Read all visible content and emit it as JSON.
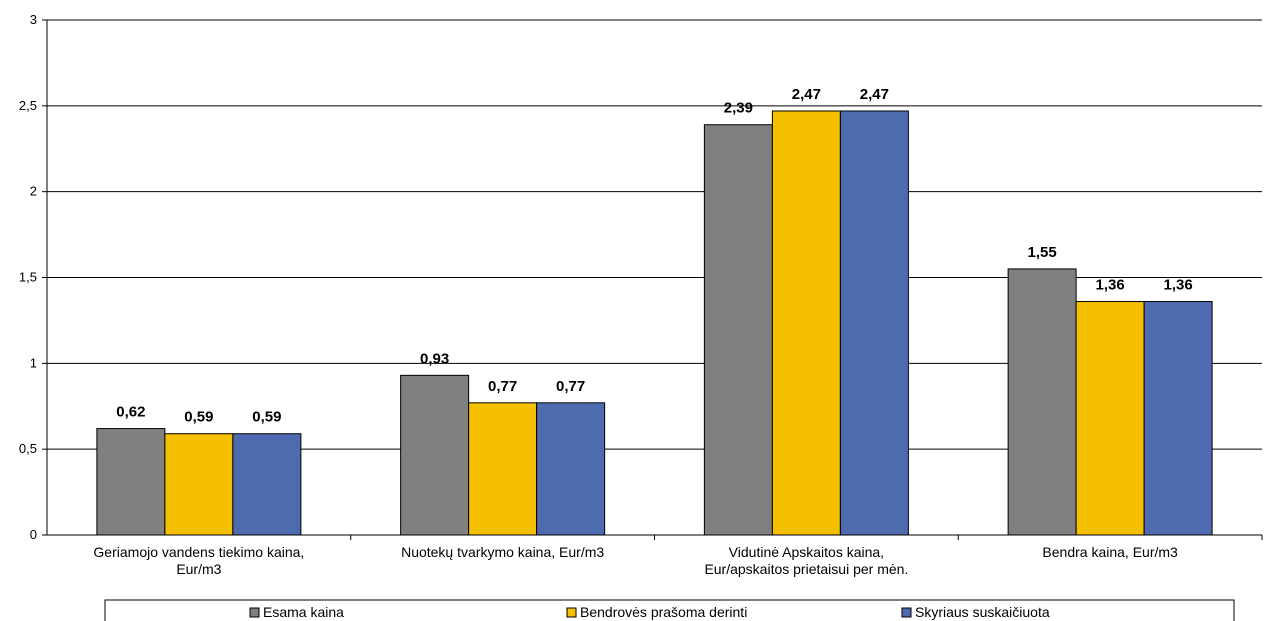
{
  "chart_data": {
    "type": "bar",
    "categories": [
      [
        "Geriamojo vandens tiekimo kaina,",
        "Eur/m3"
      ],
      [
        "Nuotekų tvarkymo kaina, Eur/m3"
      ],
      [
        "Vidutinė Apskaitos kaina,",
        "Eur/apskaitos prietaisui per mėn."
      ],
      [
        "Bendra kaina, Eur/m3"
      ]
    ],
    "series": [
      {
        "name": "Esama kaina",
        "color": "#808080",
        "values": [
          0.62,
          0.93,
          2.39,
          1.55
        ],
        "labels": [
          "0,62",
          "0,93",
          "2,39",
          "1,55"
        ]
      },
      {
        "name": "Bendrovės prašoma derinti",
        "color": "#f5c000",
        "values": [
          0.59,
          0.77,
          2.47,
          1.36
        ],
        "labels": [
          "0,59",
          "0,77",
          "2,47",
          "1,36"
        ]
      },
      {
        "name": "Skyriaus suskaičiuota",
        "color": "#4f6bb0",
        "values": [
          0.59,
          0.77,
          2.47,
          1.36
        ],
        "labels": [
          "0,59",
          "0,77",
          "2,47",
          "1,36"
        ]
      }
    ],
    "yticks": [
      0,
      0.5,
      1,
      1.5,
      2,
      2.5,
      3
    ],
    "ytick_labels": [
      "0",
      "0,5",
      "1",
      "1,5",
      "2",
      "2,5",
      "3"
    ],
    "ylim": [
      0,
      3
    ],
    "grid": true,
    "legend_position": "bottom"
  }
}
